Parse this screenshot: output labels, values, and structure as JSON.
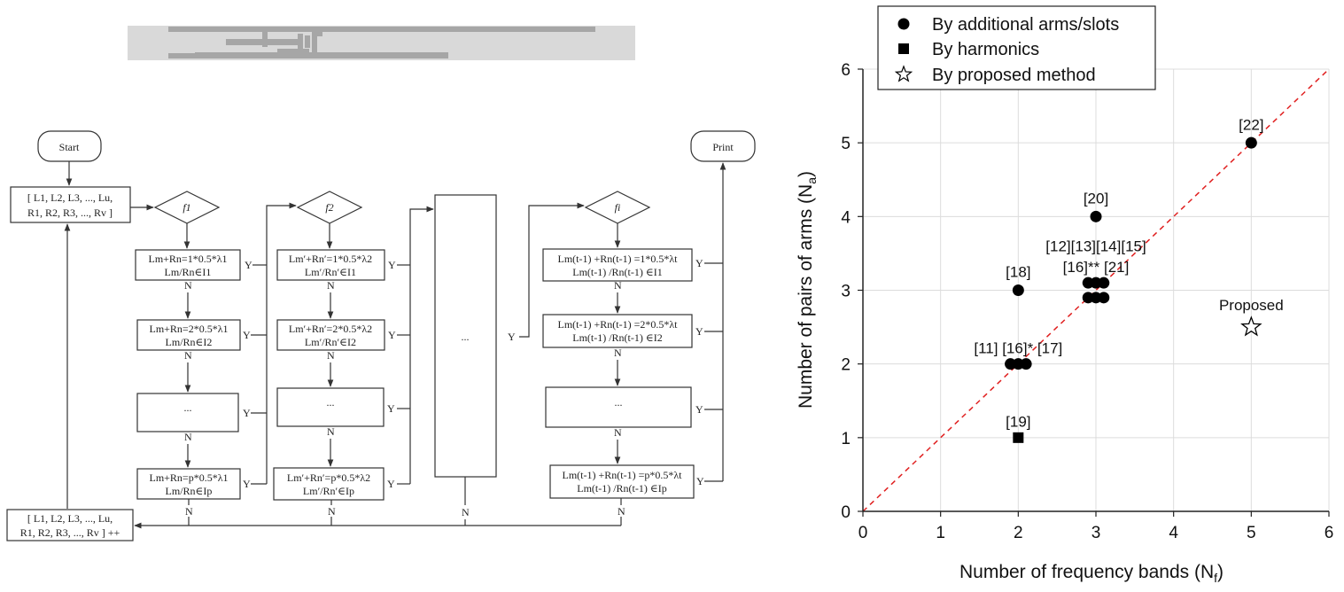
{
  "antenna_figure": {
    "background": "#d9d9d9",
    "trace_color": "#a6a6a6"
  },
  "flowchart": {
    "start": "Start",
    "print": "Print",
    "init_box": [
      "[ L1, L2, L3, ..., Lu,",
      "R1, R2, R3, ..., Rv ]"
    ],
    "incr_box": [
      "[ L1, L2, L3, ..., Lu,",
      "R1, R2, R3, ..., Rv ] ++"
    ],
    "decisions": [
      "f1",
      "f2",
      "fi"
    ],
    "column1": [
      [
        "Lm+Rn=1*0.5*λ1",
        "Lm/Rn∈I1"
      ],
      [
        "Lm+Rn=2*0.5*λ1",
        "Lm/Rn∈I2"
      ],
      [
        "..."
      ],
      [
        "Lm+Rn=p*0.5*λ1",
        "Lm/Rn∈Ip"
      ]
    ],
    "column2": [
      [
        "Lm′+Rn′=1*0.5*λ2",
        "Lm′/Rn′∈I1"
      ],
      [
        "Lm′+Rn′=2*0.5*λ2",
        "Lm′/Rn′∈I2"
      ],
      [
        "..."
      ],
      [
        "Lm′+Rn′=p*0.5*λ2",
        "Lm′/Rn′∈Ip"
      ]
    ],
    "middle": "...",
    "column4": [
      [
        "Lm(t-1) +Rn(t-1) =1*0.5*λt",
        "Lm(t-1) /Rn(t-1) ∈I1"
      ],
      [
        "Lm(t-1) +Rn(t-1) =2*0.5*λt",
        "Lm(t-1) /Rn(t-1) ∈I2"
      ],
      [
        "..."
      ],
      [
        "Lm(t-1) +Rn(t-1) =p*0.5*λt",
        "Lm(t-1) /Rn(t-1) ∈Ip"
      ]
    ],
    "yes": "Y",
    "no": "N"
  },
  "chart_data": {
    "type": "scatter",
    "xlabel": "Number of frequency bands (N",
    "xlabel_sub": "f",
    "xlabel_end": ")",
    "ylabel": "Number of pairs of arms (N",
    "ylabel_sub": "a",
    "ylabel_end": ")",
    "xlim": [
      0,
      6
    ],
    "ylim": [
      0,
      6
    ],
    "xticks": [
      "0",
      "1",
      "2",
      "3",
      "4",
      "5",
      "6"
    ],
    "yticks": [
      "0",
      "1",
      "2",
      "3",
      "4",
      "5",
      "6"
    ],
    "grid": true,
    "legend_position": "top-left",
    "reference_line": {
      "from": [
        0,
        0
      ],
      "to": [
        6,
        6
      ],
      "style": "dashed",
      "color": "#e02020"
    },
    "series": [
      {
        "name": "By additional arms/slots",
        "marker": "circle",
        "points": [
          {
            "x": 1.9,
            "y": 2
          },
          {
            "x": 2.0,
            "y": 2
          },
          {
            "x": 2.1,
            "y": 2
          },
          {
            "x": 2.0,
            "y": 3
          },
          {
            "x": 2.9,
            "y": 3.1
          },
          {
            "x": 3.0,
            "y": 3.1
          },
          {
            "x": 3.1,
            "y": 3.1
          },
          {
            "x": 2.9,
            "y": 2.9
          },
          {
            "x": 3.0,
            "y": 2.9
          },
          {
            "x": 3.1,
            "y": 2.9
          },
          {
            "x": 3.0,
            "y": 4
          },
          {
            "x": 5.0,
            "y": 5
          }
        ]
      },
      {
        "name": "By harmonics",
        "marker": "square",
        "points": [
          {
            "x": 2.0,
            "y": 1
          }
        ]
      },
      {
        "name": "By proposed method",
        "marker": "star",
        "points": [
          {
            "x": 5.0,
            "y": 2.5
          }
        ]
      }
    ],
    "annotations": [
      {
        "text": "[22]",
        "x": 5.0,
        "y": 5.25
      },
      {
        "text": "[20]",
        "x": 3.0,
        "y": 4.25
      },
      {
        "text": "[12][13][14][15]",
        "x": 3.0,
        "y": 3.6
      },
      {
        "text": "[16]** [21]",
        "x": 3.0,
        "y": 3.32
      },
      {
        "text": "[18]",
        "x": 2.0,
        "y": 3.25
      },
      {
        "text": "Proposed",
        "x": 5.0,
        "y": 2.8
      },
      {
        "text": "[11] [16]* [17]",
        "x": 2.0,
        "y": 2.22
      },
      {
        "text": "[19]",
        "x": 2.0,
        "y": 1.22
      }
    ]
  }
}
